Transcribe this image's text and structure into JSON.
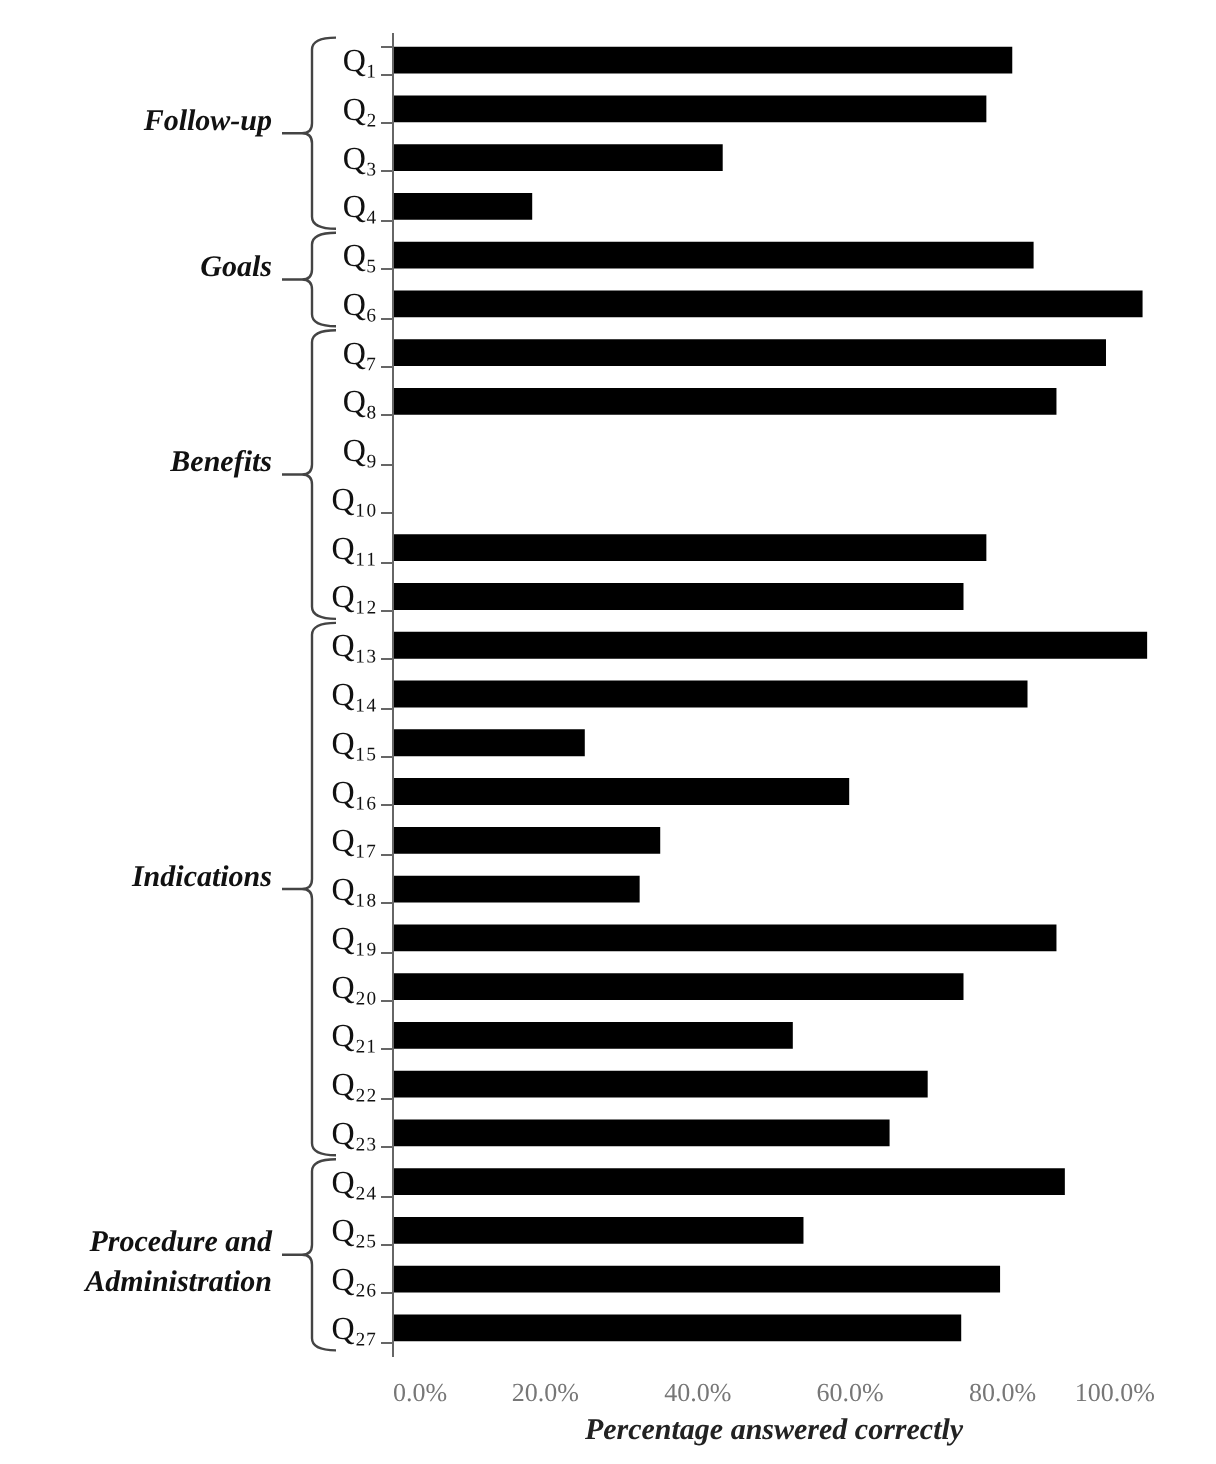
{
  "chart_data": {
    "type": "bar",
    "orientation": "horizontal",
    "xlabel": "Percentage answered correctly",
    "categories": [
      "Q₁",
      "Q₂",
      "Q₃",
      "Q₄",
      "Q₅",
      "Q₆",
      "Q₇",
      "Q₈",
      "Q₉",
      "Q₁₀",
      "Q₁₁",
      "Q₁₂",
      "Q₁₃",
      "Q₁₄",
      "Q₁₅",
      "Q₁₆",
      "Q₁₇",
      "Q₁₈",
      "Q₁₉",
      "Q₂₀",
      "Q₂₁",
      "Q₂₂",
      "Q₂₃",
      "Q₂₄",
      "Q₂₅",
      "Q₂₆",
      "Q₂₇"
    ],
    "values": [
      81.4,
      78.0,
      43.4,
      18.4,
      84.2,
      98.5,
      93.7,
      87.2,
      null,
      null,
      78.0,
      75.0,
      99.1,
      83.4,
      25.3,
      60.0,
      35.2,
      32.5,
      87.2,
      75.0,
      52.6,
      70.3,
      65.3,
      88.3,
      54.0,
      79.8,
      74.7
    ],
    "color": "#000000",
    "xlim": [
      0,
      100
    ],
    "xticks": [
      {
        "value": 0,
        "label": "0.0%"
      },
      {
        "value": 20,
        "label": "20.0%"
      },
      {
        "value": 40,
        "label": "40.0%"
      },
      {
        "value": 60,
        "label": "60.0%"
      },
      {
        "value": 80,
        "label": "80.0%"
      },
      {
        "value": 100,
        "label": "100.0%"
      }
    ],
    "annotations": [
      "Follow-up",
      "Goals",
      "Benefits",
      "Indications",
      "Procedure and Administration"
    ]
  }
}
